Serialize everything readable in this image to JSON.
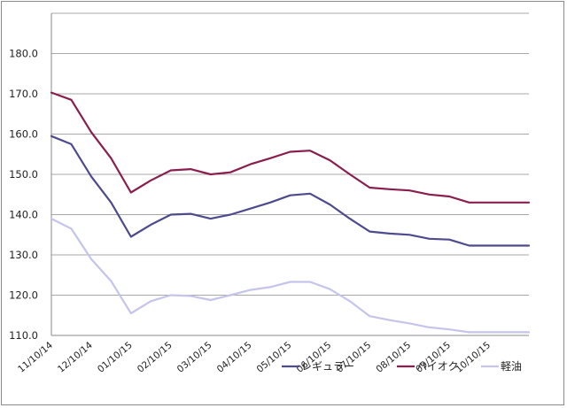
{
  "chart_data": {
    "type": "line",
    "title": "",
    "xlabel": "",
    "ylabel": "",
    "ylim": [
      110,
      190
    ],
    "yticks": [
      "110.0",
      "120.0",
      "130.0",
      "140.0",
      "150.0",
      "160.0",
      "170.0",
      "180.0"
    ],
    "xticks": [
      "11/10/14",
      "12/10/14",
      "01/10/15",
      "02/10/15",
      "03/10/15",
      "04/10/15",
      "05/10/15",
      "06/10/15",
      "07/10/15",
      "08/10/15",
      "09/10/15",
      "10/10/15"
    ],
    "grid": true,
    "legend_position": "bottom-right",
    "x": [
      0,
      0.5,
      1,
      1.5,
      2,
      2.5,
      3,
      3.5,
      4,
      4.5,
      5,
      5.5,
      6,
      6.5,
      7,
      7.5,
      8,
      8.5,
      9,
      9.5,
      10,
      10.5,
      11,
      11.5,
      12
    ],
    "series": [
      {
        "name": "レギュラー",
        "color": "#4e4a8e",
        "values": [
          159.5,
          157.5,
          149.5,
          143.0,
          134.5,
          137.5,
          140.0,
          140.2,
          139.0,
          140.0,
          141.5,
          143.0,
          144.8,
          145.2,
          142.5,
          139.0,
          135.8,
          135.3,
          135.0,
          134.0,
          133.8,
          132.3,
          132.3,
          132.3,
          132.3
        ]
      },
      {
        "name": "ハイオク",
        "color": "#8a1e4e",
        "values": [
          170.3,
          168.5,
          160.5,
          154.0,
          145.5,
          148.5,
          151.0,
          151.3,
          150.0,
          150.5,
          152.5,
          154.0,
          155.6,
          155.9,
          153.5,
          150.0,
          146.7,
          146.3,
          146.0,
          145.0,
          144.5,
          143.0,
          143.0,
          143.0,
          143.0
        ]
      },
      {
        "name": "軽油",
        "color": "#c4c4ec",
        "values": [
          139.0,
          136.5,
          129.0,
          123.5,
          115.5,
          118.5,
          120.0,
          119.8,
          118.8,
          120.0,
          121.3,
          122.0,
          123.3,
          123.3,
          121.5,
          118.5,
          114.8,
          113.8,
          113.0,
          112.0,
          111.5,
          110.8,
          110.8,
          110.8,
          110.8
        ]
      }
    ]
  }
}
